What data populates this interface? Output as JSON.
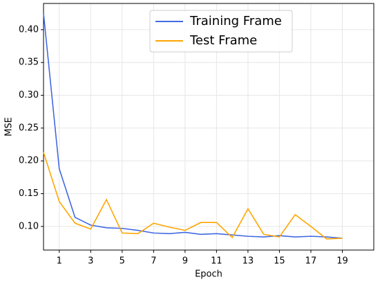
{
  "chart_data": {
    "type": "line",
    "xlabel": "Epoch",
    "ylabel": "MSE",
    "x": [
      0,
      1,
      2,
      3,
      4,
      5,
      6,
      7,
      8,
      9,
      10,
      11,
      12,
      13,
      14,
      15,
      16,
      17,
      18,
      19
    ],
    "series": [
      {
        "name": "Training Frame",
        "color": "#4169e1",
        "values": [
          0.425,
          0.188,
          0.114,
          0.102,
          0.098,
          0.097,
          0.094,
          0.09,
          0.089,
          0.091,
          0.088,
          0.089,
          0.087,
          0.085,
          0.084,
          0.086,
          0.084,
          0.085,
          0.084,
          0.082
        ]
      },
      {
        "name": "Test Frame",
        "color": "#ffa500",
        "values": [
          0.213,
          0.138,
          0.105,
          0.096,
          0.141,
          0.09,
          0.089,
          0.105,
          0.099,
          0.094,
          0.106,
          0.106,
          0.083,
          0.127,
          0.088,
          0.084,
          0.118,
          0.1,
          0.081,
          0.082
        ]
      }
    ],
    "xlim": [
      0,
      21
    ],
    "xticks": [
      1,
      3,
      5,
      7,
      9,
      11,
      13,
      15,
      17,
      19
    ],
    "ylim": [
      0.064,
      0.44
    ],
    "yticks": [
      {
        "value": 0.1,
        "label": "0.10"
      },
      {
        "value": 0.15,
        "label": "0.15"
      },
      {
        "value": 0.2,
        "label": "0.20"
      },
      {
        "value": 0.25,
        "label": "0.25"
      },
      {
        "value": 0.3,
        "label": "0.30"
      },
      {
        "value": 0.35,
        "label": "0.35"
      },
      {
        "value": 0.4,
        "label": "0.40"
      }
    ],
    "grid": true,
    "legend": "upper center"
  }
}
